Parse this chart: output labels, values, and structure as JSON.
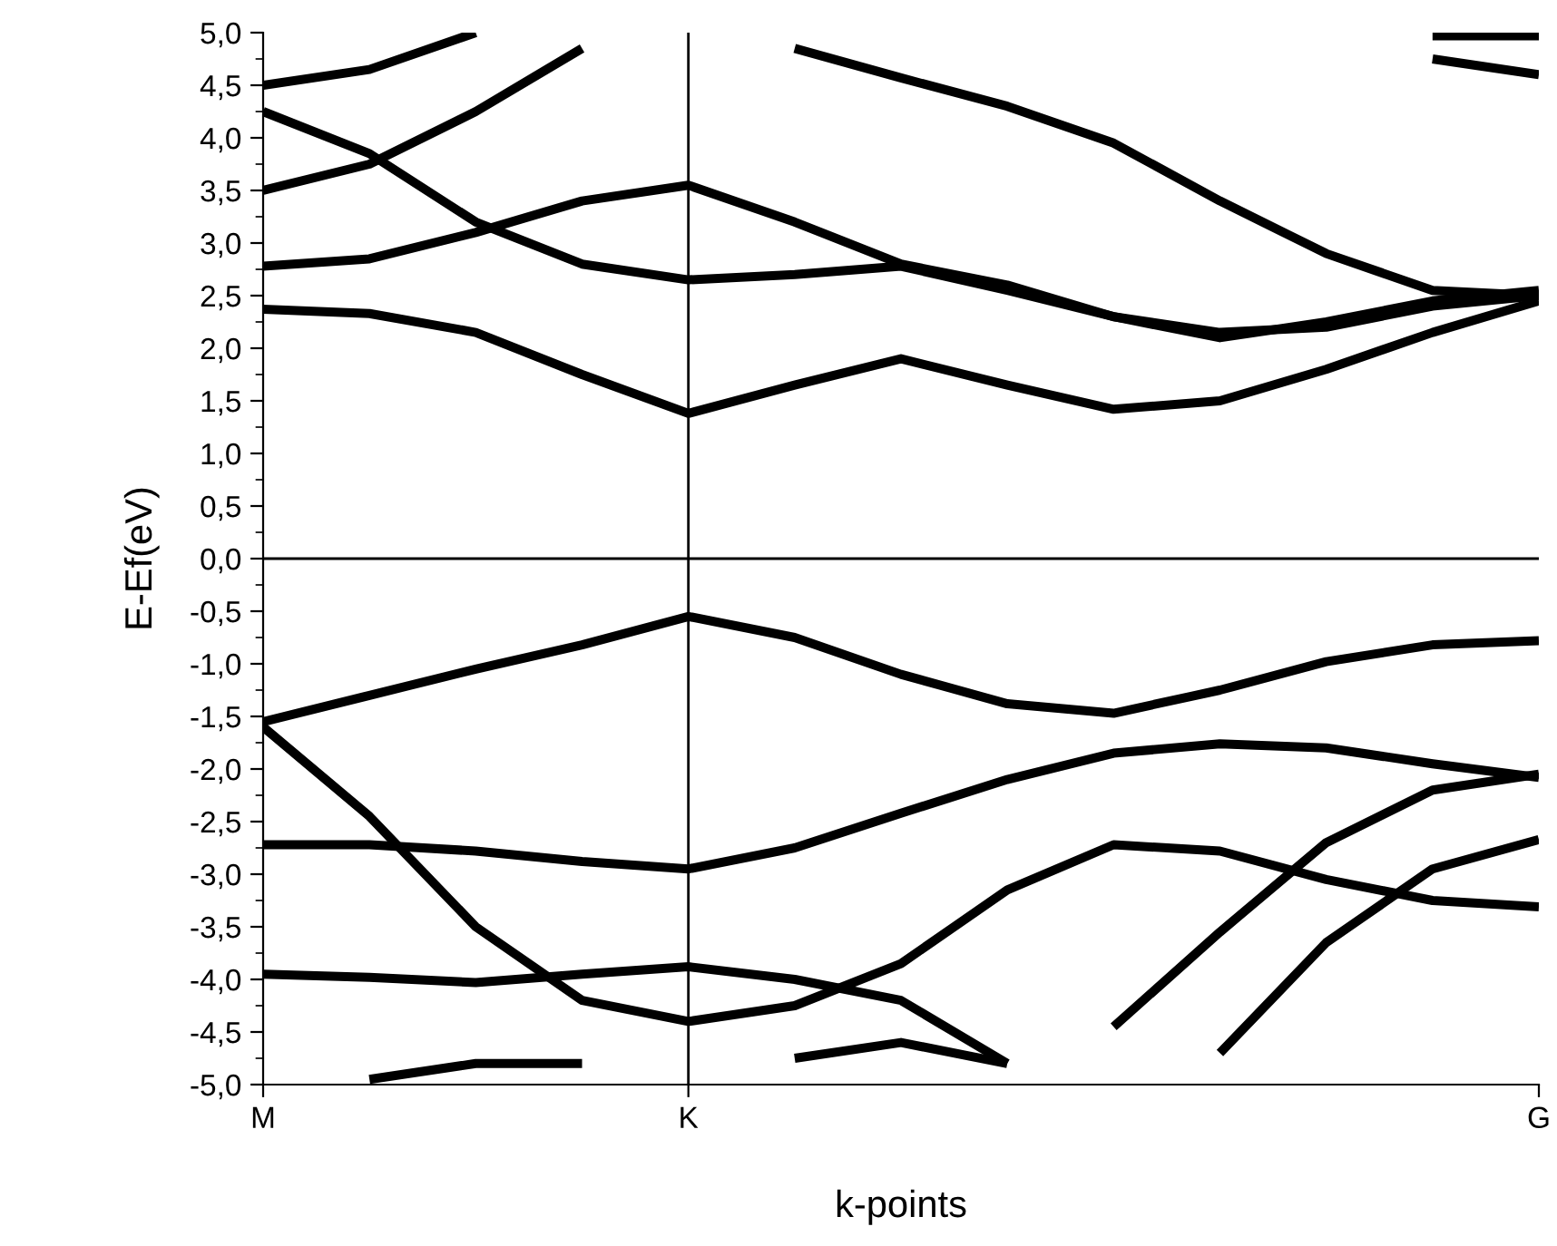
{
  "chart_data": {
    "type": "line",
    "xlabel": "k-points",
    "ylabel": "E-Ef(eV)",
    "categories": [
      "M",
      null,
      null,
      null,
      "K",
      null,
      null,
      null,
      null,
      null,
      null,
      null,
      "G"
    ],
    "ylim": [
      -5,
      5
    ],
    "yticks": [
      {
        "value": 5,
        "label": "5,0"
      },
      {
        "value": 4.5,
        "label": "4,5"
      },
      {
        "value": 4,
        "label": "4,0"
      },
      {
        "value": 3.5,
        "label": "3,5"
      },
      {
        "value": 3,
        "label": "3,0"
      },
      {
        "value": 2.5,
        "label": "2,5"
      },
      {
        "value": 2,
        "label": "2,0"
      },
      {
        "value": 1.5,
        "label": "1,5"
      },
      {
        "value": 1,
        "label": "1,0"
      },
      {
        "value": 0.5,
        "label": "0,5"
      },
      {
        "value": 0,
        "label": "0,0"
      },
      {
        "value": -0.5,
        "label": "-0,5"
      },
      {
        "value": -1,
        "label": "-1,0"
      },
      {
        "value": -1.5,
        "label": "-1,5"
      },
      {
        "value": -2,
        "label": "-2,0"
      },
      {
        "value": -2.5,
        "label": "-2,5"
      },
      {
        "value": -3,
        "label": "-3,0"
      },
      {
        "value": -3.5,
        "label": "-3,5"
      },
      {
        "value": -4,
        "label": "-4,0"
      },
      {
        "value": -4.5,
        "label": "-4,5"
      },
      {
        "value": -5,
        "label": "-5,0"
      }
    ],
    "grid": false,
    "legend": false,
    "marker": "none",
    "line_style": "solid",
    "ref_lines": [
      {
        "axis": "x",
        "value": "K",
        "color": "#000000"
      },
      {
        "axis": "y",
        "value": 0,
        "color": "#000000"
      }
    ],
    "series": [
      {
        "color": "#000000",
        "values": [
          2.37,
          2.33,
          2.15,
          1.75,
          1.38,
          1.65,
          1.9,
          1.65,
          1.42,
          1.5,
          1.8,
          2.15,
          2.45
        ]
      },
      {
        "color": "#000000",
        "values": [
          2.78,
          2.85,
          3.1,
          3.4,
          3.55,
          3.2,
          2.8,
          2.6,
          2.3,
          2.15,
          2.2,
          2.4,
          2.5
        ]
      },
      {
        "color": "#000000",
        "values": [
          4.25,
          3.85,
          3.2,
          2.8,
          2.65,
          2.7,
          2.78,
          2.55,
          2.3,
          2.1,
          2.25,
          2.45,
          2.55
        ]
      },
      {
        "color": "#000000",
        "values": [
          3.5,
          3.75,
          4.25,
          4.85,
          null,
          null,
          null,
          null,
          null,
          null,
          null,
          null,
          null
        ]
      },
      {
        "color": "#000000",
        "values": [
          null,
          null,
          null,
          null,
          null,
          4.85,
          4.57,
          4.3,
          3.95,
          3.4,
          2.9,
          2.55,
          2.5
        ]
      },
      {
        "color": "#000000",
        "values": [
          4.5,
          4.65,
          5.0,
          null,
          null,
          null,
          null,
          null,
          null,
          null,
          null,
          null,
          null
        ]
      },
      {
        "color": "#000000",
        "values": [
          null,
          null,
          null,
          null,
          null,
          null,
          null,
          null,
          null,
          null,
          null,
          4.75,
          4.6
        ]
      },
      {
        "color": "#000000",
        "values": [
          null,
          null,
          null,
          null,
          null,
          null,
          null,
          null,
          null,
          null,
          null,
          4.97,
          4.97
        ]
      },
      {
        "color": "#000000",
        "values": [
          -1.55,
          -1.3,
          -1.05,
          -0.82,
          -0.55,
          -0.75,
          -1.1,
          -1.38,
          -1.47,
          -1.25,
          -0.98,
          -0.82,
          -0.78
        ]
      },
      {
        "color": "#000000",
        "values": [
          -1.6,
          -2.45,
          -3.5,
          -4.2,
          -4.4,
          -4.25,
          -3.85,
          -3.15,
          -2.72,
          -2.78,
          -3.05,
          -3.25,
          -3.31
        ]
      },
      {
        "color": "#000000",
        "values": [
          -2.72,
          -2.72,
          -2.78,
          -2.88,
          -2.95,
          -2.75,
          -2.42,
          -2.1,
          -1.85,
          -1.76,
          -1.8,
          -1.95,
          -2.08
        ]
      },
      {
        "color": "#000000",
        "values": [
          -3.95,
          -3.98,
          -4.03,
          -3.95,
          -3.88,
          -4.0,
          -4.2,
          -4.8,
          null,
          null,
          null,
          null,
          null
        ]
      },
      {
        "color": "#000000",
        "values": [
          null,
          null,
          null,
          null,
          null,
          null,
          null,
          null,
          -4.45,
          -3.55,
          -2.7,
          -2.2,
          -2.05
        ]
      },
      {
        "color": "#000000",
        "values": [
          null,
          null,
          null,
          null,
          null,
          null,
          null,
          null,
          null,
          -4.7,
          -3.65,
          -2.95,
          -2.67
        ]
      },
      {
        "color": "#000000",
        "values": [
          null,
          -4.95,
          -4.8,
          -4.8,
          null,
          null,
          null,
          null,
          null,
          null,
          null,
          null,
          null
        ]
      },
      {
        "color": "#000000",
        "values": [
          null,
          null,
          null,
          null,
          null,
          -4.75,
          -4.6,
          -4.8,
          null,
          null,
          null,
          null,
          null
        ]
      }
    ]
  }
}
